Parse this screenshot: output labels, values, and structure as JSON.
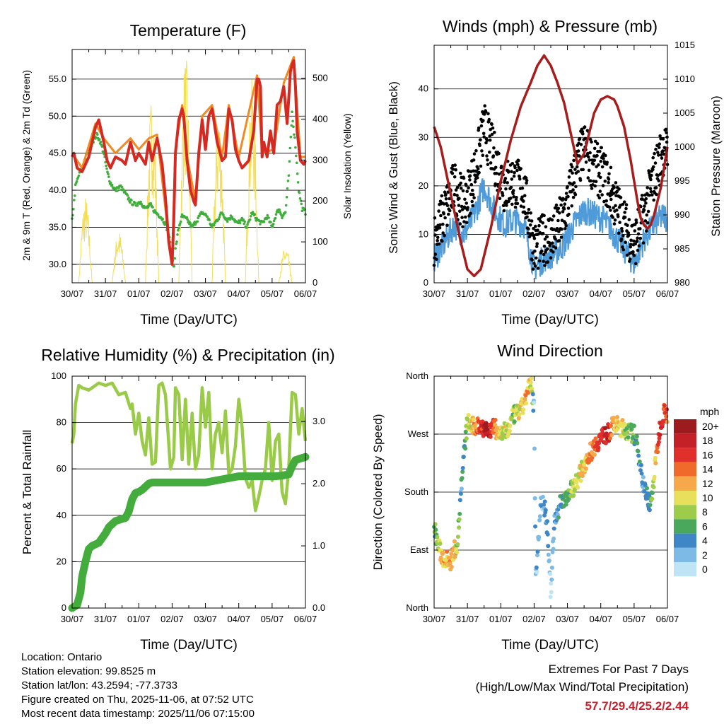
{
  "colors": {
    "temp_red": "#d42a22",
    "temp_orange": "#f08a24",
    "dewpoint_green": "#3fae3a",
    "solar_yellow": "#f5dd55",
    "wind_blue": "#4f9bd9",
    "gust_black": "#000000",
    "pressure_maroon": "#a51d1d",
    "rh_lightgreen": "#9acb48",
    "precip_green": "#43ac3c",
    "extremes_red": "#c8202c"
  },
  "time_axis": {
    "xlabel": "Time (Day/UTC)",
    "ticks": [
      "30/07",
      "31/07",
      "01/07",
      "02/07",
      "03/07",
      "04/07",
      "05/07",
      "06/07"
    ]
  },
  "chart_data": [
    {
      "id": "temperature",
      "type": "line",
      "title": "Temperature (F)",
      "xlabel": "Time (Day/UTC)",
      "ylabel": "2m & 9m T (Red, Orange) & 2m Td (Green)",
      "y2label": "Solar Insolation (Yellow)",
      "xlim": [
        0,
        7
      ],
      "ylim": [
        27.5,
        59
      ],
      "y2lim": [
        0,
        570
      ],
      "yticks": [
        "30.0",
        "35.0",
        "40.0",
        "45.0",
        "50.0",
        "55.0"
      ],
      "ytick_values": [
        30,
        35,
        40,
        45,
        50,
        55
      ],
      "y2ticks": [
        "0",
        "100",
        "200",
        "300",
        "400",
        "500"
      ],
      "y2tick_values": [
        0,
        100,
        200,
        300,
        400,
        500
      ],
      "series": [
        {
          "name": "2m T",
          "color": "#d42a22",
          "axis": "left",
          "x": [
            0,
            0.05,
            0.15,
            0.3,
            0.5,
            0.7,
            0.8,
            0.95,
            1.05,
            1.15,
            1.3,
            1.5,
            1.6,
            1.75,
            1.9,
            2.0,
            2.2,
            2.3,
            2.4,
            2.55,
            2.7,
            2.8,
            2.9,
            3.0,
            3.05,
            3.1,
            3.2,
            3.3,
            3.35,
            3.45,
            3.55,
            3.65,
            3.7,
            3.8,
            3.9,
            4.0,
            4.1,
            4.2,
            4.35,
            4.5,
            4.6,
            4.7,
            4.8,
            4.9,
            5.0,
            5.1,
            5.3,
            5.45,
            5.55,
            5.6,
            5.65,
            5.7,
            5.75,
            5.85,
            5.95,
            6.05,
            6.15,
            6.25,
            6.35,
            6.45,
            6.55,
            6.6,
            6.65,
            6.7,
            6.75,
            6.85,
            6.95,
            7.0
          ],
          "values": [
            44.5,
            45,
            43,
            42.5,
            44.5,
            48.5,
            49.5,
            46.5,
            44,
            43,
            44.5,
            44,
            43.5,
            46.5,
            44,
            45,
            43.5,
            46.5,
            44,
            47,
            43.5,
            39,
            33,
            30,
            36,
            45,
            49.5,
            51,
            50,
            44,
            40,
            38.5,
            38,
            45,
            49.5,
            45.5,
            50,
            51,
            46.5,
            44,
            44.5,
            51,
            49.5,
            45.5,
            44,
            43,
            44,
            48,
            55,
            55,
            54,
            44.5,
            46.5,
            44.5,
            48,
            45,
            51.5,
            52,
            54,
            49,
            56,
            57,
            57.5,
            54,
            48,
            44,
            43.5,
            44
          ]
        },
        {
          "name": "9m T",
          "color": "#f08a24",
          "axis": "left",
          "x": [
            0,
            0.3,
            0.7,
            0.95,
            1.3,
            1.75,
            2.0,
            2.3,
            2.55,
            2.9,
            3.0,
            3.1,
            3.3,
            3.45,
            3.7,
            3.9,
            4.2,
            4.5,
            4.7,
            5.0,
            5.55,
            5.7,
            6.05,
            6.35,
            6.65,
            6.85,
            7.0
          ],
          "values": [
            45,
            43,
            49,
            47,
            45,
            47,
            45.5,
            47,
            47.5,
            33.5,
            30.5,
            45.5,
            51.5,
            44.5,
            38.5,
            50,
            51.5,
            44.5,
            51.5,
            44.5,
            55.5,
            45,
            45.5,
            54.5,
            58,
            44.5,
            44.5
          ]
        },
        {
          "name": "2m Td",
          "color": "#3fae3a",
          "axis": "left",
          "x": [
            0,
            0.05,
            0.1,
            0.2,
            0.3,
            0.45,
            0.6,
            0.75,
            0.85,
            0.95,
            1.05,
            1.15,
            1.3,
            1.45,
            1.6,
            1.75,
            1.9,
            2.05,
            2.2,
            2.35,
            2.5,
            2.65,
            2.8,
            2.9,
            3.0,
            3.05,
            3.1,
            3.2,
            3.3,
            3.45,
            3.6,
            3.75,
            3.9,
            4.05,
            4.2,
            4.35,
            4.5,
            4.65,
            4.8,
            4.95,
            5.1,
            5.25,
            5.4,
            5.55,
            5.7,
            5.85,
            6.0,
            6.1,
            6.2,
            6.3,
            6.4,
            6.5,
            6.6,
            6.7,
            6.8,
            6.9,
            7.0
          ],
          "values": [
            36,
            38,
            40.5,
            42,
            43,
            45,
            46.5,
            47.5,
            46.5,
            45,
            42.5,
            41,
            40,
            40.5,
            39.5,
            38.5,
            38,
            38.5,
            37.5,
            38,
            37,
            36.5,
            35.5,
            34,
            31,
            29.5,
            32,
            35,
            36.5,
            36,
            35,
            36,
            37,
            36.5,
            35,
            36,
            37,
            36,
            36.5,
            35.5,
            36,
            35,
            37,
            36,
            35.5,
            36.5,
            35,
            36.5,
            37.5,
            36.5,
            37,
            42,
            50.5,
            46,
            40,
            37.5,
            37
          ]
        },
        {
          "name": "Solar Insolation",
          "color": "#f5dd55",
          "axis": "right",
          "days": [
            0,
            1,
            2,
            3,
            4,
            5,
            6
          ],
          "peaks": [
            215,
            130,
            470,
            560,
            430,
            500,
            90
          ]
        }
      ]
    },
    {
      "id": "winds_pressure",
      "type": "scatter",
      "title": "Winds (mph) & Pressure (mb)",
      "xlabel": "Time (Day/UTC)",
      "ylabel": "Sonic Wind & Gust (Blue, Black)",
      "y2label": "Station Pressure (Maroon)",
      "xlim": [
        0,
        7
      ],
      "ylim": [
        0,
        49
      ],
      "y2lim": [
        980,
        1015
      ],
      "yticks": [
        "0",
        "10",
        "20",
        "30",
        "40"
      ],
      "ytick_values": [
        0,
        10,
        20,
        30,
        40
      ],
      "y2ticks": [
        "980",
        "985",
        "990",
        "995",
        "1000",
        "1005",
        "1010",
        "1015"
      ],
      "y2tick_values": [
        980,
        985,
        990,
        995,
        1000,
        1005,
        1010,
        1015
      ],
      "series": [
        {
          "name": "Sonic Wind",
          "color": "#4f9bd9",
          "axis": "left",
          "x": [
            0,
            0.3,
            0.6,
            0.9,
            1.2,
            1.5,
            1.8,
            2.1,
            2.4,
            2.7,
            3.0,
            3.3,
            3.6,
            3.9,
            4.2,
            4.5,
            4.8,
            5.1,
            5.4,
            5.7,
            6.0,
            6.3,
            6.6,
            6.9,
            7.0
          ],
          "values": [
            5,
            8,
            12,
            10,
            14,
            20,
            15,
            12,
            13,
            12,
            3,
            5,
            6,
            8,
            12,
            15,
            14,
            13,
            10,
            7,
            4,
            9,
            12,
            14,
            13
          ]
        },
        {
          "name": "Gust",
          "color": "#000000",
          "axis": "left",
          "x": [
            0,
            0.3,
            0.6,
            0.9,
            1.2,
            1.5,
            1.8,
            2.1,
            2.4,
            2.7,
            3.0,
            3.3,
            3.6,
            3.9,
            4.2,
            4.5,
            4.8,
            5.1,
            5.4,
            5.7,
            6.0,
            6.3,
            6.6,
            6.9,
            7.0
          ],
          "values": [
            9,
            14,
            20,
            16,
            22,
            32,
            26,
            20,
            21,
            19,
            7,
            9,
            10,
            14,
            22,
            28,
            24,
            22,
            17,
            12,
            8,
            14,
            22,
            28,
            26
          ]
        },
        {
          "name": "Station Pressure",
          "color": "#a51d1d",
          "axis": "right",
          "x": [
            0,
            0.2,
            0.5,
            0.8,
            1.0,
            1.2,
            1.4,
            1.7,
            2.0,
            2.3,
            2.6,
            2.9,
            3.1,
            3.3,
            3.5,
            3.7,
            3.9,
            4.1,
            4.3,
            4.5,
            4.65,
            4.8,
            5.0,
            5.2,
            5.4,
            5.5,
            5.7,
            5.9,
            6.1,
            6.2,
            6.3,
            6.4,
            6.5,
            6.6,
            6.7,
            6.8,
            6.9,
            7.0
          ],
          "values": [
            1003,
            1000,
            993,
            986,
            982,
            981,
            982,
            988,
            995,
            1001,
            1006,
            1009.5,
            1012,
            1013.5,
            1012,
            1009.5,
            1006.5,
            1002,
            997.5,
            999,
            1002,
            1005,
            1007,
            1007.5,
            1007,
            1006,
            1003,
            998,
            992,
            989.5,
            988.5,
            988,
            988.5,
            990,
            992,
            994,
            997,
            1000
          ]
        }
      ]
    },
    {
      "id": "humidity_precip",
      "type": "line",
      "title": "Relative Humidity (%) & Precipitation (in)",
      "xlabel": "Time (Day/UTC)",
      "ylabel": "Percent & Total Rainfall",
      "xlim": [
        0,
        7
      ],
      "ylim": [
        0,
        100
      ],
      "y2lim": [
        0,
        3.73
      ],
      "yticks": [
        "0",
        "20",
        "40",
        "60",
        "80",
        "100"
      ],
      "ytick_values": [
        0,
        20,
        40,
        60,
        80,
        100
      ],
      "y2ticks": [
        "0.0",
        "1.0",
        "2.0",
        "3.0"
      ],
      "y2tick_values": [
        0,
        1,
        2,
        3
      ],
      "series": [
        {
          "name": "Relative Humidity",
          "color": "#9acb48",
          "axis": "left",
          "x": [
            0,
            0.05,
            0.1,
            0.2,
            0.3,
            0.5,
            0.8,
            1.0,
            1.2,
            1.4,
            1.6,
            1.75,
            1.8,
            1.9,
            2.0,
            2.1,
            2.2,
            2.3,
            2.4,
            2.5,
            2.6,
            2.7,
            2.8,
            2.95,
            3.05,
            3.1,
            3.2,
            3.3,
            3.4,
            3.5,
            3.6,
            3.7,
            3.8,
            3.9,
            4.0,
            4.1,
            4.2,
            4.3,
            4.4,
            4.5,
            4.6,
            4.7,
            4.8,
            4.9,
            5.0,
            5.1,
            5.2,
            5.3,
            5.4,
            5.5,
            5.6,
            5.7,
            5.8,
            5.9,
            6.0,
            6.1,
            6.2,
            6.3,
            6.4,
            6.5,
            6.6,
            6.7,
            6.8,
            6.9,
            7.0
          ],
          "values": [
            71,
            75,
            88,
            96,
            95,
            94,
            97,
            96,
            97,
            92,
            93,
            86,
            88,
            75,
            84,
            72,
            66,
            82,
            62,
            63,
            96,
            97,
            92,
            60,
            65,
            95,
            92,
            64,
            90,
            62,
            84,
            60,
            66,
            95,
            78,
            93,
            60,
            75,
            80,
            67,
            85,
            58,
            60,
            70,
            90,
            78,
            56,
            52,
            55,
            42,
            48,
            55,
            60,
            80,
            55,
            72,
            75,
            50,
            45,
            60,
            93,
            92,
            75,
            86,
            72
          ]
        },
        {
          "name": "Total Precipitation",
          "color": "#43ac3c",
          "axis": "right",
          "x": [
            0,
            0.15,
            0.25,
            0.3,
            0.4,
            0.5,
            0.6,
            0.8,
            1.0,
            1.1,
            1.2,
            1.3,
            1.6,
            1.7,
            1.8,
            1.9,
            2.0,
            2.1,
            2.2,
            2.3,
            2.4,
            3.0,
            4.0,
            4.5,
            5.0,
            5.5,
            6.0,
            6.1,
            6.3,
            6.5,
            6.6,
            6.7,
            7.0
          ],
          "values": [
            0,
            0.05,
            0.25,
            0.5,
            0.75,
            0.95,
            1.0,
            1.05,
            1.2,
            1.3,
            1.35,
            1.4,
            1.45,
            1.55,
            1.75,
            1.85,
            1.87,
            1.9,
            1.95,
            2.0,
            2.02,
            2.02,
            2.02,
            2.07,
            2.12,
            2.12,
            2.12,
            2.12,
            2.13,
            2.15,
            2.28,
            2.38,
            2.43
          ]
        }
      ]
    },
    {
      "id": "wind_direction",
      "type": "scatter",
      "title": "Wind Direction",
      "xlabel": "Time (Day/UTC)",
      "ylabel": "Direction (Colored By Speed)",
      "xlim": [
        0,
        7
      ],
      "ylim": [
        0,
        360
      ],
      "yticks": [
        "North",
        "East",
        "South",
        "West",
        "North"
      ],
      "ytick_values": [
        0,
        90,
        180,
        270,
        360
      ],
      "x": [
        0,
        0.1,
        0.2,
        0.3,
        0.4,
        0.5,
        0.6,
        0.7,
        0.8,
        0.9,
        1.0,
        1.2,
        1.4,
        1.6,
        1.8,
        2.0,
        2.2,
        2.4,
        2.6,
        2.7,
        2.8,
        2.9,
        3.0,
        3.05,
        3.2,
        3.35,
        3.4,
        3.5,
        3.6,
        3.8,
        4.0,
        4.2,
        4.4,
        4.6,
        4.8,
        5.0,
        5.2,
        5.4,
        5.6,
        5.8,
        6.0,
        6.1,
        6.2,
        6.3,
        6.5,
        6.7,
        6.8,
        6.9,
        7.0
      ],
      "values": [
        130,
        100,
        85,
        75,
        80,
        70,
        90,
        100,
        180,
        240,
        290,
        280,
        285,
        275,
        280,
        270,
        275,
        300,
        305,
        320,
        335,
        350,
        310,
        40,
        170,
        150,
        120,
        20,
        130,
        165,
        175,
        190,
        210,
        235,
        250,
        265,
        270,
        285,
        280,
        275,
        270,
        250,
        220,
        185,
        160,
        250,
        290,
        305,
        300
      ],
      "speeds": [
        6,
        8,
        10,
        12,
        12,
        12,
        11,
        8,
        4,
        5,
        8,
        12,
        16,
        20,
        14,
        10,
        9,
        8,
        10,
        11,
        12,
        10,
        1,
        3,
        2,
        4,
        3,
        1,
        4,
        5,
        6,
        8,
        10,
        12,
        14,
        16,
        18,
        12,
        10,
        8,
        6,
        5,
        4,
        3,
        5,
        14,
        18,
        16,
        14
      ],
      "legend_title": "mph",
      "legend_labels": [
        "20+",
        "18",
        "16",
        "14",
        "12",
        "10",
        "8",
        "6",
        "4",
        "2",
        "0"
      ],
      "legend_colors": [
        "#9b1b1e",
        "#c42027",
        "#e0302c",
        "#f06a2b",
        "#f6a84a",
        "#e8e05a",
        "#9ccc4a",
        "#4aa85c",
        "#3f86c6",
        "#7dbae6",
        "#bfe4f6"
      ]
    }
  ],
  "info": {
    "location": "Location: Ontario",
    "elevation": "Station elevation: 99.8525 m",
    "latlon": "Station lat/lon: 43.2594; -77.3733",
    "created": "Figure created on Thu, 2025-11-06, at 07:52 UTC",
    "timestamp": "Most recent data timestamp: 2025/11/06 07:15:00"
  },
  "extremes": {
    "title_line1": "Extremes For Past 7 Days",
    "title_line2": "(High/Low/Max Wind/Total Precipitation)",
    "values": "57.7/29.4/25.2/2.44"
  }
}
